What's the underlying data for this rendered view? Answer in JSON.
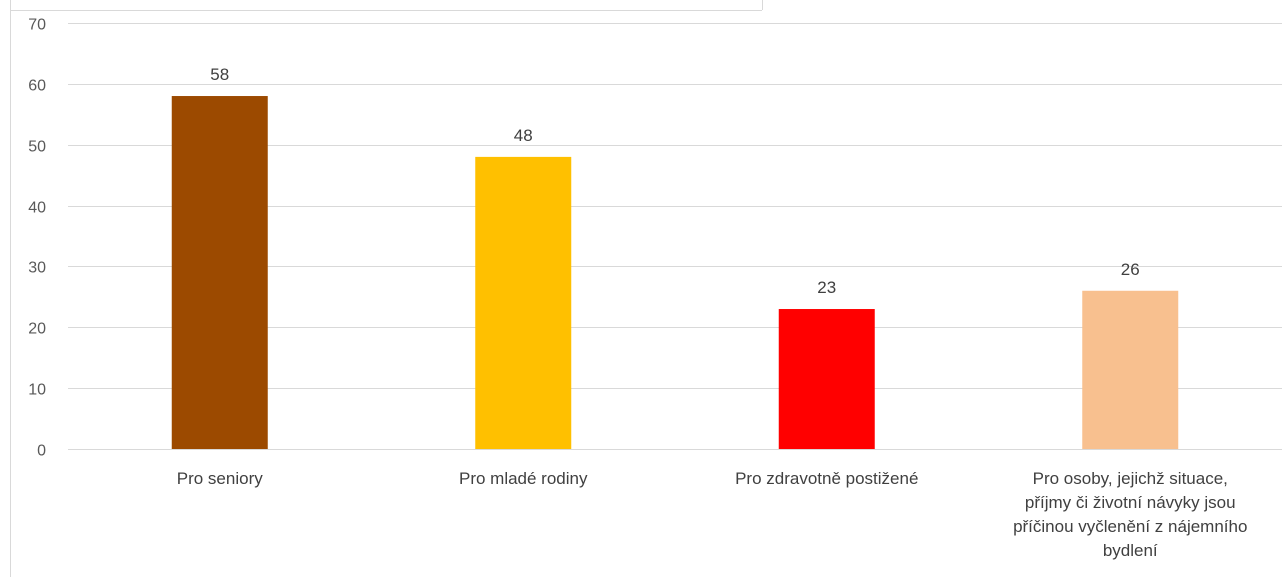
{
  "chart_data": {
    "type": "bar",
    "categories": [
      [
        "Pro seniory"
      ],
      [
        "Pro mladé rodiny"
      ],
      [
        "Pro zdravotně postižené"
      ],
      [
        "Pro osoby, jejichž situace,",
        "příjmy či životní návyky jsou",
        "příčinou vyčlenění z nájemního",
        "bydlení"
      ]
    ],
    "values": [
      58,
      48,
      23,
      26
    ],
    "colors": [
      "#9C4A00",
      "#FFC000",
      "#FF0000",
      "#F8C08F"
    ],
    "yticks": [
      0,
      10,
      20,
      30,
      40,
      50,
      60,
      70
    ],
    "ylim": [
      0,
      70
    ],
    "grid": true,
    "data_labels": true
  }
}
